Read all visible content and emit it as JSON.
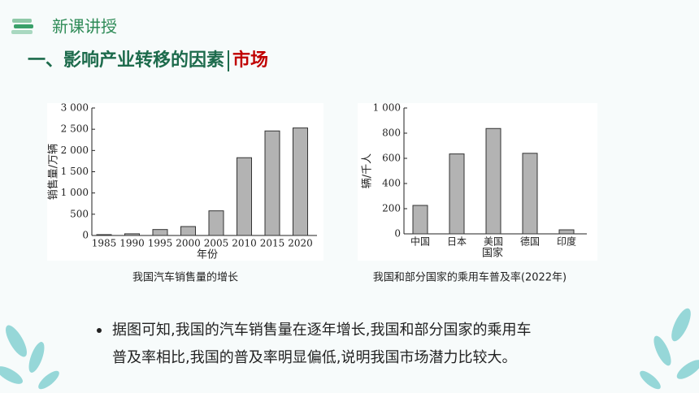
{
  "header": {
    "section": "新课讲授",
    "title": "一、影响产业转移的因素",
    "title_highlight": "市场"
  },
  "chart_data": [
    {
      "type": "bar",
      "ylabel": "销售量/万辆",
      "xlabel": "年份",
      "caption": "我国汽车销售量的增长",
      "categories": [
        "1985",
        "1990",
        "1995",
        "2000",
        "2005",
        "2010",
        "2015",
        "2020"
      ],
      "values": [
        20,
        40,
        140,
        210,
        580,
        1830,
        2460,
        2530
      ],
      "color": "#b3b3b3",
      "ylim": [
        0,
        3000
      ],
      "yticks": [
        0,
        500,
        {
          "value": 1000,
          "label": "1 000"
        },
        {
          "value": 1500,
          "label": "1 500"
        },
        {
          "value": 2000,
          "label": "2 000"
        },
        {
          "value": 2500,
          "label": "2 500"
        },
        {
          "value": 3000,
          "label": "3 000"
        }
      ]
    },
    {
      "type": "bar",
      "ylabel": "辆/千人",
      "xlabel": "国家",
      "caption": "我国和部分国家的乘用车普及率(2022年)",
      "categories": [
        "中国",
        "日本",
        "美国",
        "德国",
        "印度"
      ],
      "values": [
        226,
        635,
        837,
        640,
        32
      ],
      "color": "#b3b3b3",
      "ylim": [
        0,
        1000
      ],
      "yticks": [
        0,
        200,
        400,
        600,
        800,
        {
          "value": 1000,
          "label": "1 000"
        }
      ]
    }
  ],
  "bullet": {
    "lines": [
      "据图可知,我国的汽车销售量在逐年增长,我国和部分国家的乘用车",
      "普及率相比,我国的普及率明显偏低,说明我国市场潜力比较大。"
    ]
  }
}
